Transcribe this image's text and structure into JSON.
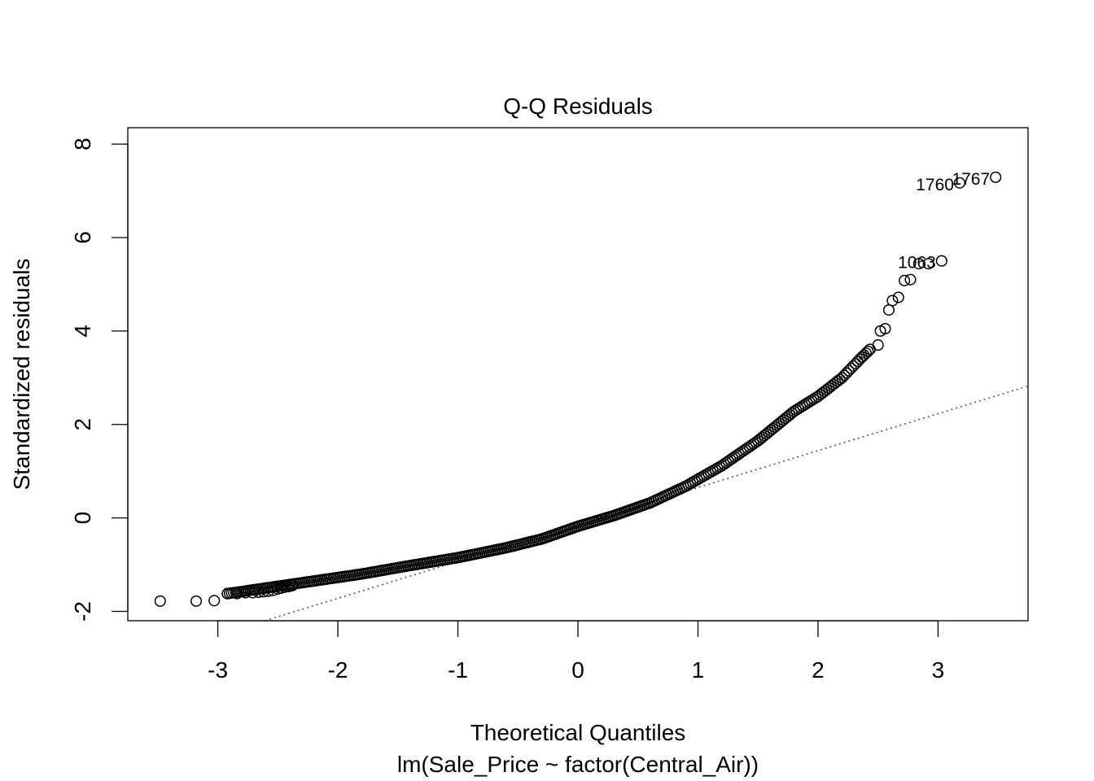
{
  "chart_data": {
    "type": "scatter",
    "title": "Q-Q Residuals",
    "xlabel": "Theoretical Quantiles",
    "subtitle": "lm(Sale_Price ~ factor(Central_Air))",
    "ylabel": "Standardized residuals",
    "xlim": [
      -3.75,
      3.75
    ],
    "ylim": [
      -2.2,
      8.35
    ],
    "x_ticks": [
      -3,
      -2,
      -1,
      0,
      1,
      2,
      3
    ],
    "y_ticks": [
      -2,
      0,
      2,
      4,
      6,
      8
    ],
    "grid": false,
    "reference_line": {
      "intercept": -0.14,
      "slope": 0.79,
      "style": "dotted"
    },
    "labeled_points": [
      {
        "label": "1767",
        "x": 3.48,
        "y": 7.29
      },
      {
        "label": "1760",
        "x": 3.18,
        "y": 7.17
      },
      {
        "label": "1063",
        "x": 3.03,
        "y": 5.5
      }
    ],
    "curve_knots": [
      [
        -2.92,
        -1.62
      ],
      [
        -2.6,
        -1.5
      ],
      [
        -2.2,
        -1.35
      ],
      [
        -1.8,
        -1.2
      ],
      [
        -1.4,
        -1.02
      ],
      [
        -1.0,
        -0.85
      ],
      [
        -0.6,
        -0.64
      ],
      [
        -0.3,
        -0.45
      ],
      [
        0.0,
        -0.18
      ],
      [
        0.3,
        0.05
      ],
      [
        0.6,
        0.32
      ],
      [
        0.9,
        0.68
      ],
      [
        1.2,
        1.12
      ],
      [
        1.5,
        1.65
      ],
      [
        1.8,
        2.28
      ],
      [
        2.0,
        2.6
      ],
      [
        2.2,
        3.0
      ],
      [
        2.35,
        3.4
      ],
      [
        2.45,
        3.65
      ]
    ],
    "points": [
      [
        -3.48,
        -1.78
      ],
      [
        -3.18,
        -1.78
      ],
      [
        -3.03,
        -1.77
      ],
      [
        -2.92,
        -1.62
      ],
      [
        -2.84,
        -1.62
      ],
      [
        -2.77,
        -1.6
      ],
      [
        -2.71,
        -1.6
      ],
      [
        -2.66,
        -1.59
      ],
      [
        -2.62,
        -1.58
      ],
      [
        -2.58,
        -1.57
      ],
      [
        -2.54,
        -1.55
      ],
      [
        -2.5,
        -1.52
      ],
      [
        -2.47,
        -1.5
      ],
      [
        -2.44,
        -1.48
      ],
      [
        -2.41,
        -1.47
      ],
      [
        -2.38,
        -1.45
      ],
      [
        2.5,
        3.7
      ],
      [
        2.52,
        4.0
      ],
      [
        2.56,
        4.05
      ],
      [
        2.59,
        4.45
      ],
      [
        2.62,
        4.65
      ],
      [
        2.67,
        4.72
      ],
      [
        2.72,
        5.08
      ],
      [
        2.77,
        5.1
      ],
      [
        2.84,
        5.44
      ],
      [
        2.92,
        5.44
      ],
      [
        3.03,
        5.5
      ],
      [
        3.18,
        7.17
      ],
      [
        3.48,
        7.29
      ]
    ]
  }
}
